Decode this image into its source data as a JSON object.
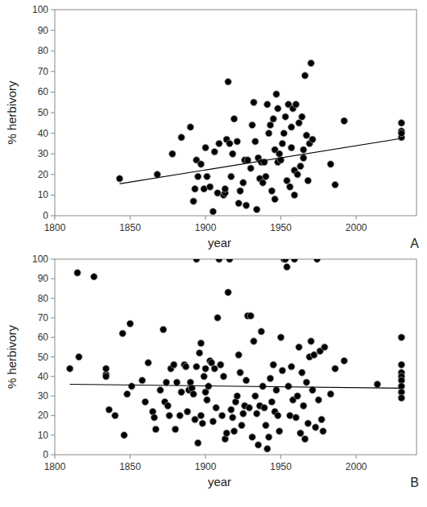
{
  "chart_data": [
    {
      "type": "scatter",
      "annotation": "A",
      "xlabel": "year",
      "ylabel": "% herbivory",
      "xlim": [
        1800,
        2040
      ],
      "xticks": [
        1800,
        1850,
        1900,
        1950,
        2000
      ],
      "ylim": [
        0,
        100
      ],
      "yticks": [
        0,
        10,
        20,
        30,
        40,
        50,
        60,
        70,
        80,
        90,
        100
      ],
      "series": [
        {
          "type": "scatter",
          "marker": "circle",
          "color": "#000000",
          "x": [
            1843,
            1868,
            1878,
            1884,
            1890,
            1892,
            1893,
            1894,
            1895,
            1897,
            1899,
            1900,
            1901,
            1903,
            1905,
            1906,
            1908,
            1909,
            1912,
            1913,
            1913,
            1914,
            1915,
            1916,
            1917,
            1918,
            1919,
            1921,
            1922,
            1923,
            1925,
            1926,
            1927,
            1928,
            1930,
            1931,
            1932,
            1933,
            1934,
            1935,
            1936,
            1937,
            1938,
            1939,
            1940,
            1941,
            1942,
            1943,
            1944,
            1945,
            1946,
            1946,
            1947,
            1948,
            1948,
            1949,
            1950,
            1951,
            1952,
            1953,
            1954,
            1955,
            1956,
            1957,
            1957,
            1958,
            1959,
            1959,
            1960,
            1961,
            1962,
            1963,
            1964,
            1965,
            1965,
            1966,
            1967,
            1968,
            1969,
            1970,
            1971,
            1983,
            1986,
            1992,
            2030,
            2030,
            2030,
            2030
          ],
          "values": [
            18,
            20,
            30,
            38,
            43,
            7,
            13,
            27,
            19,
            25,
            13,
            33,
            19,
            14,
            2,
            31,
            11,
            35,
            10,
            11,
            13,
            37,
            65,
            35,
            19,
            30,
            47,
            36,
            6,
            12,
            16,
            27,
            5,
            27,
            23,
            44,
            55,
            36,
            3,
            28,
            18,
            26,
            16,
            26,
            19,
            54,
            40,
            44,
            12,
            47,
            32,
            8,
            59,
            52,
            26,
            30,
            27,
            35,
            40,
            48,
            17,
            54,
            14,
            43,
            33,
            52,
            10,
            22,
            54,
            20,
            45,
            24,
            48,
            28,
            32,
            68,
            39,
            17,
            35,
            74,
            37,
            25,
            15,
            46,
            38,
            41,
            45,
            40
          ]
        },
        {
          "type": "line",
          "color": "#000000",
          "x": [
            1843,
            2030
          ],
          "values": [
            15.5,
            37.5
          ]
        }
      ]
    },
    {
      "type": "scatter",
      "annotation": "B",
      "xlabel": "year",
      "ylabel": "% herbivory",
      "xlim": [
        1800,
        2040
      ],
      "xticks": [
        1800,
        1850,
        1900,
        1950,
        2000
      ],
      "ylim": [
        0,
        100
      ],
      "yticks": [
        0,
        10,
        20,
        30,
        40,
        50,
        60,
        70,
        80,
        90,
        100
      ],
      "series": [
        {
          "type": "scatter",
          "marker": "circle",
          "color": "#000000",
          "x": [
            1810,
            1815,
            1816,
            1826,
            1834,
            1834,
            1834,
            1836,
            1840,
            1845,
            1846,
            1848,
            1850,
            1851,
            1858,
            1860,
            1862,
            1865,
            1866,
            1867,
            1870,
            1872,
            1873,
            1874,
            1875,
            1876,
            1877,
            1879,
            1880,
            1881,
            1883,
            1884,
            1886,
            1887,
            1888,
            1889,
            1890,
            1891,
            1892,
            1893,
            1894,
            1894,
            1895,
            1896,
            1897,
            1897,
            1898,
            1899,
            1900,
            1900,
            1901,
            1902,
            1903,
            1904,
            1905,
            1906,
            1907,
            1908,
            1909,
            1910,
            1911,
            1912,
            1913,
            1914,
            1915,
            1916,
            1917,
            1918,
            1919,
            1920,
            1921,
            1922,
            1923,
            1924,
            1925,
            1926,
            1927,
            1928,
            1929,
            1930,
            1931,
            1932,
            1933,
            1934,
            1935,
            1936,
            1937,
            1938,
            1939,
            1940,
            1941,
            1942,
            1943,
            1944,
            1945,
            1946,
            1947,
            1948,
            1949,
            1950,
            1951,
            1952,
            1953,
            1954,
            1955,
            1956,
            1957,
            1958,
            1959,
            1960,
            1961,
            1962,
            1963,
            1964,
            1965,
            1966,
            1967,
            1968,
            1969,
            1970,
            1971,
            1972,
            1973,
            1974,
            1975,
            1976,
            1977,
            1978,
            1979,
            1983,
            1986,
            1992,
            2014,
            2030,
            2030,
            2030,
            2030,
            2030,
            2030,
            2030,
            2030
          ],
          "values": [
            44,
            93,
            50,
            91,
            41,
            44,
            40,
            23,
            20,
            62,
            10,
            31,
            67,
            35,
            38,
            27,
            47,
            22,
            19,
            13,
            33,
            64,
            27,
            37,
            25,
            20,
            44,
            46,
            13,
            37,
            20,
            32,
            46,
            45,
            22,
            33,
            37,
            34,
            31,
            18,
            45,
            100,
            6,
            52,
            57,
            20,
            16,
            40,
            44,
            32,
            28,
            35,
            48,
            47,
            17,
            44,
            24,
            70,
            100,
            46,
            20,
            40,
            8,
            11,
            83,
            100,
            23,
            19,
            12,
            27,
            30,
            51,
            42,
            15,
            21,
            25,
            38,
            71,
            24,
            71,
            9,
            58,
            30,
            21,
            5,
            25,
            63,
            35,
            24,
            15,
            3,
            9,
            39,
            27,
            46,
            22,
            33,
            20,
            12,
            60,
            43,
            100,
            100,
            96,
            35,
            20,
            45,
            28,
            100,
            19,
            30,
            55,
            11,
            42,
            25,
            8,
            37,
            16,
            50,
            58,
            33,
            51,
            14,
            100,
            28,
            53,
            18,
            12,
            55,
            31,
            44,
            48,
            36,
            60,
            46,
            42,
            40,
            38,
            35,
            32,
            29
          ]
        },
        {
          "type": "line",
          "color": "#000000",
          "x": [
            1810,
            2030
          ],
          "values": [
            36,
            34
          ]
        }
      ]
    }
  ]
}
